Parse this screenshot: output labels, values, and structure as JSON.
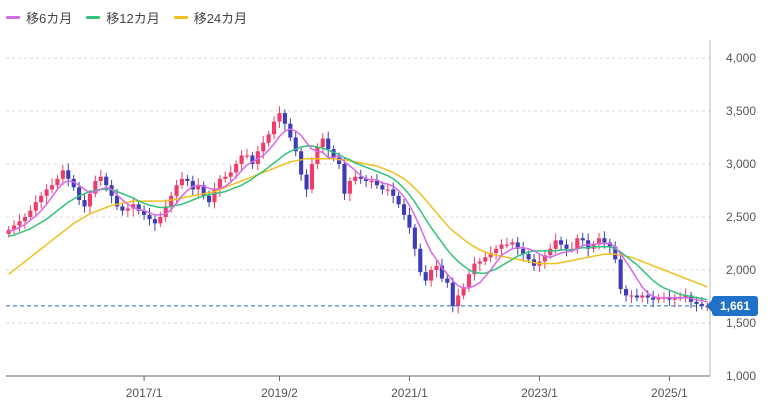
{
  "chart_data": {
    "type": "candlestick",
    "legend": [
      {
        "label": "移6カ月",
        "color": "#d46ae6"
      },
      {
        "label": "移12カ月",
        "color": "#33c27a"
      },
      {
        "label": "移24カ月",
        "color": "#f0c020"
      }
    ],
    "y_ticks": [
      "1,000",
      "1,500",
      "2,000",
      "2,500",
      "3,000",
      "3,500",
      "4,000"
    ],
    "ylim": [
      1000,
      4000
    ],
    "x_ticks": [
      "2017/1",
      "2019/2",
      "2021/1",
      "2023/1",
      "2025/1"
    ],
    "current_price": "1,661",
    "current_price_value": 1661,
    "colors": {
      "up": "#ee3d6a",
      "down": "#3d3db8",
      "ma6": "#d46ae6",
      "ma12": "#33c27a",
      "ma24": "#f0c020",
      "price_line": "#1f72c8"
    },
    "close": [
      2380,
      2420,
      2460,
      2500,
      2560,
      2640,
      2700,
      2760,
      2800,
      2860,
      2940,
      2860,
      2780,
      2660,
      2600,
      2720,
      2840,
      2880,
      2800,
      2700,
      2600,
      2560,
      2580,
      2620,
      2560,
      2520,
      2480,
      2440,
      2500,
      2600,
      2700,
      2800,
      2860,
      2840,
      2760,
      2800,
      2700,
      2640,
      2760,
      2860,
      2880,
      2920,
      3000,
      3080,
      3080,
      3000,
      3120,
      3200,
      3280,
      3400,
      3480,
      3380,
      3250,
      3120,
      2900,
      2760,
      3000,
      3160,
      3240,
      3140,
      3060,
      3000,
      2720,
      2840,
      2880,
      2860,
      2840,
      2840,
      2800,
      2760,
      2760,
      2700,
      2620,
      2520,
      2400,
      2200,
      1980,
      1900,
      2000,
      2040,
      1920,
      1880,
      1660,
      1760,
      1840,
      1960,
      2060,
      2080,
      2120,
      2160,
      2200,
      2240,
      2240,
      2260,
      2200,
      2150,
      2100,
      2040,
      2080,
      2140,
      2200,
      2280,
      2240,
      2200,
      2200,
      2300,
      2280,
      2200,
      2240,
      2300,
      2260,
      2220,
      2100,
      1820,
      1760,
      1760,
      1740,
      1760,
      1740,
      1720,
      1740,
      1740,
      1720,
      1740,
      1740,
      1760,
      1700,
      1680,
      1660,
      1661
    ],
    "ma6": [
      2360,
      2380,
      2400,
      2430,
      2470,
      2510,
      2560,
      2620,
      2690,
      2760,
      2820,
      2840,
      2830,
      2800,
      2760,
      2730,
      2740,
      2760,
      2780,
      2760,
      2710,
      2660,
      2620,
      2590,
      2570,
      2560,
      2540,
      2520,
      2520,
      2530,
      2570,
      2630,
      2700,
      2750,
      2790,
      2800,
      2790,
      2770,
      2760,
      2770,
      2790,
      2830,
      2880,
      2940,
      2990,
      3020,
      3050,
      3080,
      3130,
      3190,
      3260,
      3310,
      3330,
      3310,
      3270,
      3200,
      3140,
      3120,
      3110,
      3060,
      3060,
      3080,
      3020,
      2980,
      2940,
      2890,
      2860,
      2850,
      2850,
      2820,
      2810,
      2790,
      2750,
      2690,
      2610,
      2510,
      2400,
      2280,
      2170,
      2100,
      2020,
      1960,
      1900,
      1850,
      1830,
      1830,
      1850,
      1880,
      1940,
      2000,
      2070,
      2140,
      2170,
      2200,
      2210,
      2210,
      2200,
      2180,
      2150,
      2130,
      2120,
      2140,
      2160,
      2170,
      2180,
      2200,
      2230,
      2240,
      2240,
      2250,
      2250,
      2250,
      2220,
      2150,
      2080,
      2000,
      1920,
      1840,
      1780,
      1750,
      1740,
      1740,
      1740,
      1740,
      1740,
      1740,
      1730,
      1720,
      1710,
      1700
    ],
    "ma12": [
      2320,
      2330,
      2350,
      2370,
      2390,
      2420,
      2450,
      2480,
      2520,
      2560,
      2600,
      2640,
      2670,
      2700,
      2720,
      2740,
      2750,
      2760,
      2760,
      2760,
      2740,
      2720,
      2700,
      2680,
      2650,
      2630,
      2610,
      2600,
      2590,
      2590,
      2600,
      2610,
      2620,
      2640,
      2660,
      2680,
      2700,
      2710,
      2720,
      2730,
      2740,
      2760,
      2780,
      2800,
      2830,
      2860,
      2900,
      2930,
      2970,
      3010,
      3050,
      3090,
      3120,
      3140,
      3160,
      3170,
      3170,
      3160,
      3150,
      3130,
      3110,
      3090,
      3060,
      3040,
      3010,
      2990,
      2970,
      2950,
      2930,
      2910,
      2890,
      2860,
      2820,
      2770,
      2710,
      2640,
      2560,
      2480,
      2400,
      2330,
      2260,
      2190,
      2130,
      2080,
      2040,
      2000,
      1980,
      1970,
      1970,
      1990,
      2010,
      2040,
      2070,
      2100,
      2130,
      2150,
      2170,
      2180,
      2180,
      2180,
      2180,
      2180,
      2190,
      2190,
      2190,
      2200,
      2210,
      2210,
      2220,
      2220,
      2220,
      2220,
      2200,
      2170,
      2130,
      2090,
      2050,
      2000,
      1950,
      1900,
      1860,
      1830,
      1810,
      1790,
      1770,
      1760,
      1750,
      1740,
      1730,
      1720
    ],
    "ma24": [
      1960,
      2000,
      2040,
      2080,
      2120,
      2160,
      2200,
      2240,
      2280,
      2320,
      2360,
      2400,
      2440,
      2470,
      2500,
      2530,
      2550,
      2570,
      2590,
      2610,
      2620,
      2630,
      2640,
      2650,
      2650,
      2650,
      2650,
      2650,
      2650,
      2650,
      2660,
      2670,
      2680,
      2690,
      2700,
      2710,
      2720,
      2730,
      2740,
      2760,
      2780,
      2800,
      2820,
      2840,
      2860,
      2880,
      2900,
      2920,
      2940,
      2960,
      2980,
      3000,
      3020,
      3030,
      3040,
      3050,
      3050,
      3050,
      3050,
      3050,
      3050,
      3040,
      3040,
      3030,
      3020,
      3010,
      3000,
      2990,
      2980,
      2960,
      2940,
      2920,
      2890,
      2860,
      2820,
      2770,
      2720,
      2660,
      2600,
      2540,
      2480,
      2420,
      2370,
      2330,
      2290,
      2250,
      2220,
      2190,
      2170,
      2150,
      2140,
      2130,
      2120,
      2110,
      2100,
      2090,
      2080,
      2070,
      2060,
      2060,
      2060,
      2060,
      2070,
      2080,
      2090,
      2100,
      2110,
      2120,
      2130,
      2140,
      2150,
      2150,
      2150,
      2140,
      2130,
      2120,
      2100,
      2080,
      2060,
      2040,
      2020,
      2000,
      1980,
      1960,
      1940,
      1920,
      1900,
      1880,
      1860,
      1840
    ]
  }
}
